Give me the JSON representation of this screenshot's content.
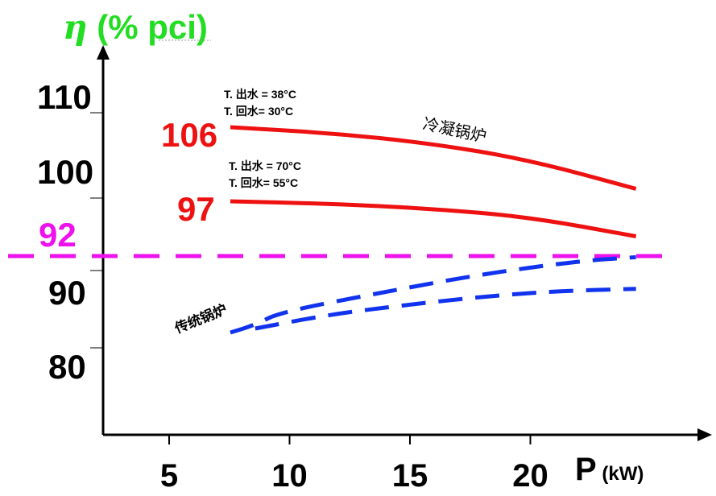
{
  "chart_data": {
    "type": "line",
    "title": "",
    "ylabel": {
      "symbol": "η",
      "unit": " (% pci)",
      "color": "#22dd22"
    },
    "xlabel": {
      "symbol": "P",
      "unit": " (kW)"
    },
    "xlim": [
      2.5,
      26
    ],
    "ylim": [
      70,
      115
    ],
    "x_ticks": [
      5,
      10,
      15,
      20
    ],
    "x_tick_labels": [
      "5",
      "10",
      "15",
      "20"
    ],
    "y_ticks": [
      80,
      90,
      100,
      110
    ],
    "y_tick_labels": [
      "80",
      "90",
      "100",
      "110"
    ],
    "grid": false,
    "series": [
      {
        "x": [
          8,
          12,
          16,
          20,
          24.3
        ],
        "values": [
          106,
          105.2,
          103.8,
          101.5,
          97.5
        ],
        "color": "#ee1111",
        "style": "solid"
      },
      {
        "x": [
          8,
          12,
          16,
          20,
          24.3
        ],
        "values": [
          97,
          96.6,
          95.8,
          94.4,
          91.2
        ],
        "color": "#ee1111",
        "style": "solid"
      },
      {
        "x": [
          8,
          9,
          10,
          14,
          18,
          22,
          24.3
        ],
        "values": [
          82.4,
          83.2,
          84.5,
          86.5,
          88.4,
          89.8,
          90.2
        ],
        "color": "#1133ee",
        "style": "dashed"
      },
      {
        "x": [
          9,
          12,
          15,
          18,
          21,
          24.3
        ],
        "values": [
          83,
          84.2,
          85,
          85.7,
          86.2,
          86.4
        ],
        "color": "#1133ee",
        "style": "dashed"
      }
    ],
    "reference_line": {
      "value": 90.2,
      "label": "92",
      "color": "#ee11ee"
    },
    "start_labels": [
      {
        "text": "106",
        "value": 106,
        "color": "#ee1111"
      },
      {
        "text": "97",
        "value": 97,
        "color": "#ee1111"
      }
    ],
    "conditions": [
      {
        "line1": "T.  出水 = 38°C",
        "line2": "T.  回水= 30°C"
      },
      {
        "line1": "T.  出水 = 70°C",
        "line2": "T.  回水= 55°C"
      }
    ],
    "annotations": [
      {
        "text": "冷凝锅炉"
      },
      {
        "text": "传统锅炉"
      }
    ]
  }
}
